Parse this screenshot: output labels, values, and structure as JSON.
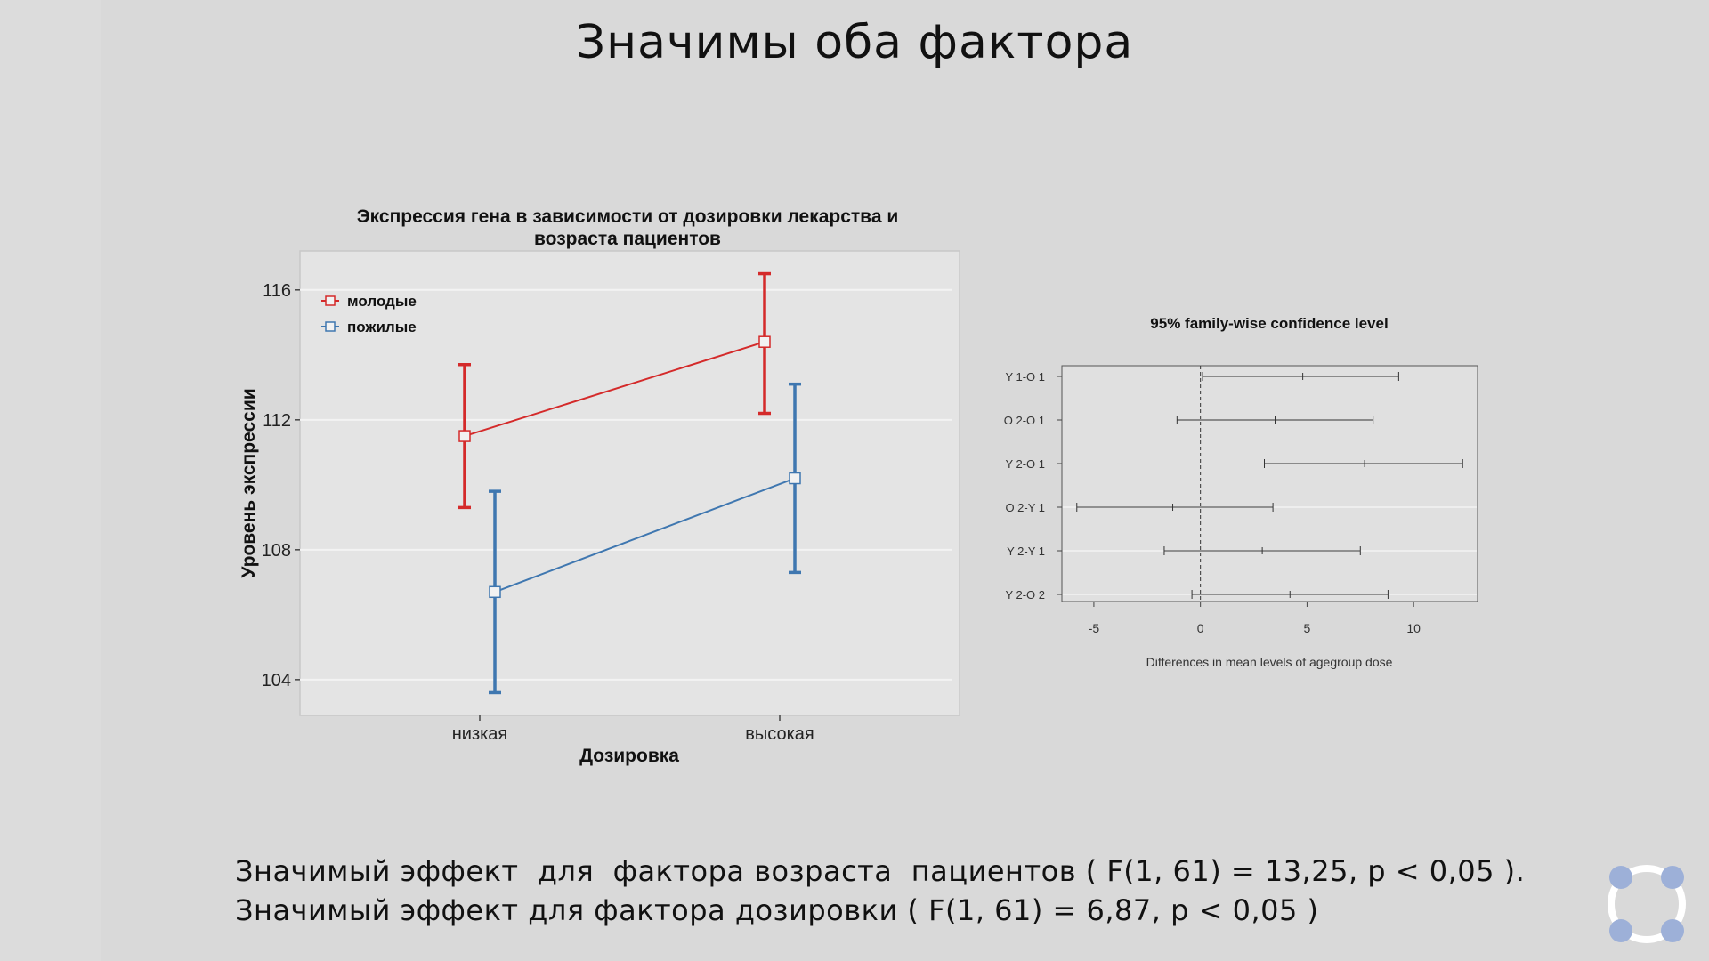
{
  "slide": {
    "title": "Значимы оба фактора",
    "caption_line1": "Значимый эффект  для  фактора возраста  пациентов ( F(1, 61) = 13,25, p < 0,05 ).",
    "caption_line2": "Значимый эффект для фактора дозировки ( F(1, 61) = 6,87, p < 0,05 )"
  },
  "chart_data": [
    {
      "type": "line",
      "title_line1": "Экспрессия гена в зависимости от дозировки лекарства и",
      "title_line2": "возраста пациентов",
      "xlabel": "Дозировка",
      "ylabel": "Уровень экспрессии",
      "categories": [
        "низкая",
        "высокая"
      ],
      "yticks": [
        104,
        108,
        112,
        116
      ],
      "ylim": [
        102.9,
        117.2
      ],
      "grid": true,
      "legend_position": "top-left",
      "series": [
        {
          "name": "молодые",
          "color": "#d42a2a",
          "values": [
            111.5,
            114.4
          ],
          "lower": [
            109.3,
            112.2
          ],
          "upper": [
            113.7,
            116.5
          ]
        },
        {
          "name": "пожилые",
          "color": "#3f77b0",
          "values": [
            106.7,
            110.2
          ],
          "lower": [
            103.6,
            107.3
          ],
          "upper": [
            109.8,
            113.1
          ]
        }
      ]
    },
    {
      "type": "errorbar",
      "title": "95% family-wise confidence level",
      "xlabel": "Differences in mean levels of agegroup dose",
      "xticks": [
        -5,
        0,
        5,
        10
      ],
      "xlim": [
        -6.5,
        13
      ],
      "reference_line": 0,
      "comparisons": [
        {
          "label": "Y 1-O 1",
          "diff": 4.8,
          "lower": 0.1,
          "upper": 9.3
        },
        {
          "label": "O 2-O 1",
          "diff": 3.5,
          "lower": -1.1,
          "upper": 8.1
        },
        {
          "label": "Y 2-O 1",
          "diff": 7.7,
          "lower": 3.0,
          "upper": 12.3
        },
        {
          "label": "O 2-Y 1",
          "diff": -1.3,
          "lower": -5.8,
          "upper": 3.4
        },
        {
          "label": "Y 2-Y 1",
          "diff": 2.9,
          "lower": -1.7,
          "upper": 7.5
        },
        {
          "label": "Y 2-O 2",
          "diff": 4.2,
          "lower": -0.4,
          "upper": 8.8
        }
      ]
    }
  ]
}
